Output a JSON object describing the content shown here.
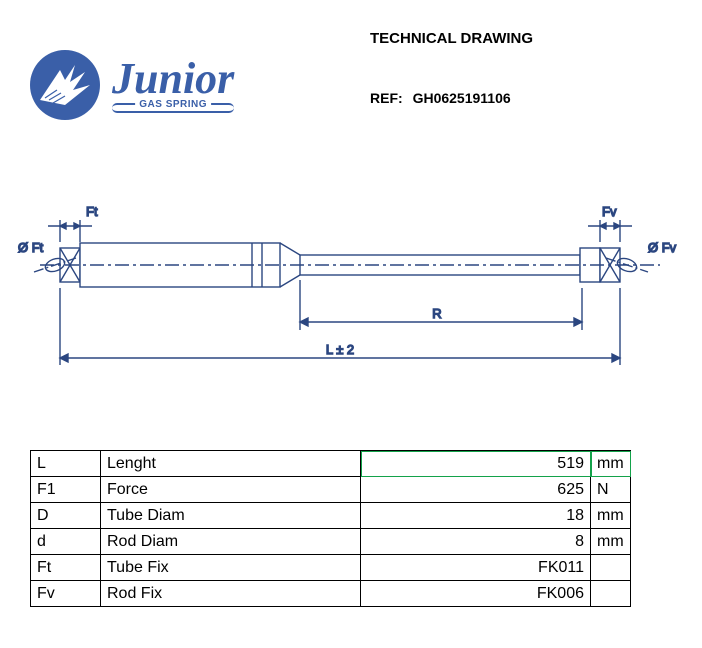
{
  "header": {
    "title": "TECHNICAL DRAWING",
    "ref_label": "REF:",
    "ref_value": "GH0625191106"
  },
  "logo": {
    "name": "Junior",
    "sub": "GAS SPRING",
    "color": "#3a5fa8"
  },
  "drawing": {
    "stroke": "#2b4680",
    "labels": {
      "L": "L ± 2",
      "R": "R",
      "Ft_dim": "Ft",
      "Fv_dim": "Fv",
      "phiFt": "Ø Ft",
      "phiFv": "Ø Fv"
    }
  },
  "specs": [
    {
      "sym": "L",
      "name": "Lenght",
      "val": "519",
      "unit": "mm",
      "hl_val": true,
      "hl_unit": true
    },
    {
      "sym": "F1",
      "name": "Force",
      "val": "625",
      "unit": "N"
    },
    {
      "sym": "D",
      "name": "Tube Diam",
      "val": "18",
      "unit": "mm"
    },
    {
      "sym": "d",
      "name": "Rod Diam",
      "val": "8",
      "unit": "mm"
    },
    {
      "sym": "Ft",
      "name": "Tube Fix",
      "val": "FK011",
      "unit": ""
    },
    {
      "sym": "Fv",
      "name": "Rod Fix",
      "val": "FK006",
      "unit": ""
    }
  ]
}
